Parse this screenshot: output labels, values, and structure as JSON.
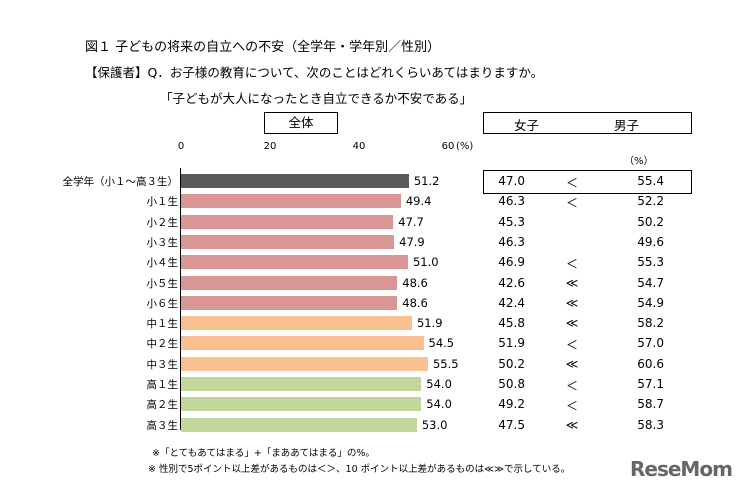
{
  "title": "図１ 子どもの将来の自立への不安（全学年・学年別／性別）",
  "question": "【保護者】Q．お子様の教育について、次のことはどれくらいあてはまりますか。",
  "statement": "「子どもが大人になったとき自立できるか不安である」",
  "overall_label": "全体",
  "girls_label": "女子",
  "boys_label": "男子",
  "pct_unit": "（%）",
  "axis_unit": "(%)",
  "notes": [
    "※「とてもあてはまる」+「まああてはまる」の%。",
    "※ 性別で5ポイント以上差があるものは＜＞、10 ポイント以上差があるものは≪≫で示している。"
  ],
  "logo": "ReseMom",
  "colors": {
    "all": "#595959",
    "elementary": "#d99694",
    "junior": "#fac090",
    "high": "#c3d69b"
  },
  "chart_data": {
    "type": "bar",
    "orientation": "horizontal",
    "xlim": [
      0,
      60
    ],
    "xticks": [
      "0",
      "20",
      "40",
      "60"
    ],
    "categories": [
      "全学年（小１～高３生）",
      "小１生",
      "小２生",
      "小３生",
      "小４生",
      "小５生",
      "小６生",
      "中１生",
      "中２生",
      "中３生",
      "高１生",
      "高２生",
      "高３生"
    ],
    "groups": [
      "all",
      "elementary",
      "elementary",
      "elementary",
      "elementary",
      "elementary",
      "elementary",
      "junior",
      "junior",
      "junior",
      "high",
      "high",
      "high"
    ],
    "values": [
      51.2,
      49.4,
      47.7,
      47.9,
      51.0,
      48.6,
      48.6,
      51.9,
      54.5,
      55.5,
      54.0,
      54.0,
      53.0
    ],
    "labels": [
      "51.2",
      "49.4",
      "47.7",
      "47.9",
      "51.0",
      "48.6",
      "48.6",
      "51.9",
      "54.5",
      "55.5",
      "54.0",
      "54.0",
      "53.0"
    ],
    "girls": [
      "47.0",
      "46.3",
      "45.3",
      "46.3",
      "46.9",
      "42.6",
      "42.4",
      "45.8",
      "51.9",
      "50.2",
      "50.8",
      "49.2",
      "47.5"
    ],
    "boys": [
      "55.4",
      "52.2",
      "50.2",
      "49.6",
      "55.3",
      "54.7",
      "54.9",
      "58.2",
      "57.0",
      "60.6",
      "57.1",
      "58.7",
      "58.3"
    ],
    "diff": [
      "＜",
      "＜",
      "",
      "",
      "＜",
      "≪",
      "≪",
      "≪",
      "＜",
      "≪",
      "＜",
      "＜",
      "≪"
    ]
  }
}
